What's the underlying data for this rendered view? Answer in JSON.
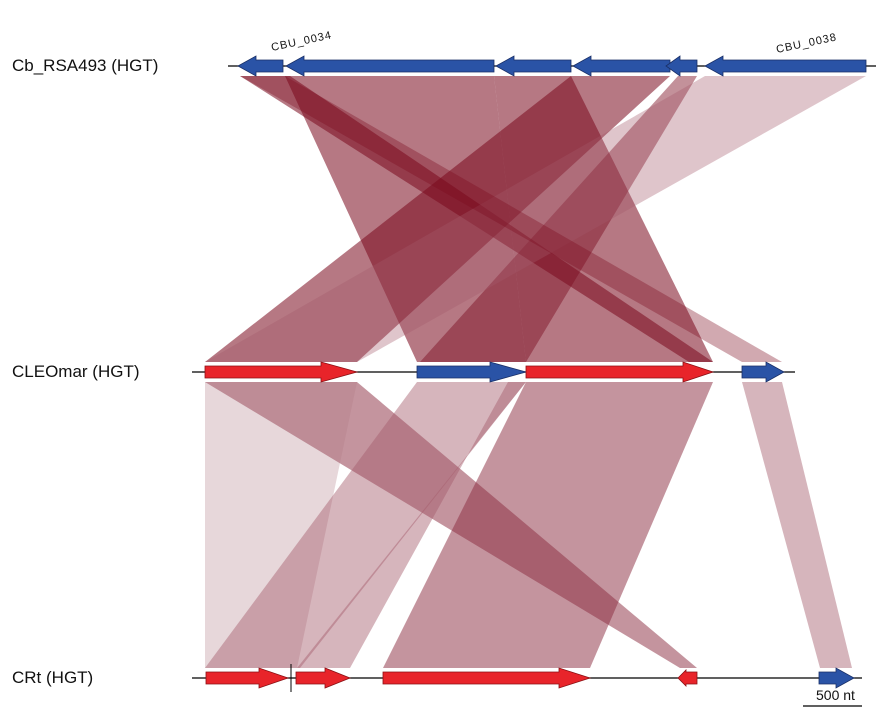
{
  "tracks": [
    {
      "id": "cb",
      "label": "Cb_RSA493 (HGT)"
    },
    {
      "id": "cleo",
      "label": "CLEOmar (HGT)"
    },
    {
      "id": "crt",
      "label": "CRt (HGT)"
    }
  ],
  "gene_labels": [
    {
      "id": "cbu0034",
      "text": "CBU_0034"
    },
    {
      "id": "cbu0038",
      "text": "CBU_0038"
    }
  ],
  "scale_bar": {
    "label": "500 nt"
  },
  "colors": {
    "forward_gene": "#e8242a",
    "reverse_gene": "#2a53a6",
    "link_dark": "#7a0a1e",
    "link_light": "#a45a6a",
    "backbone": "#000000"
  }
}
